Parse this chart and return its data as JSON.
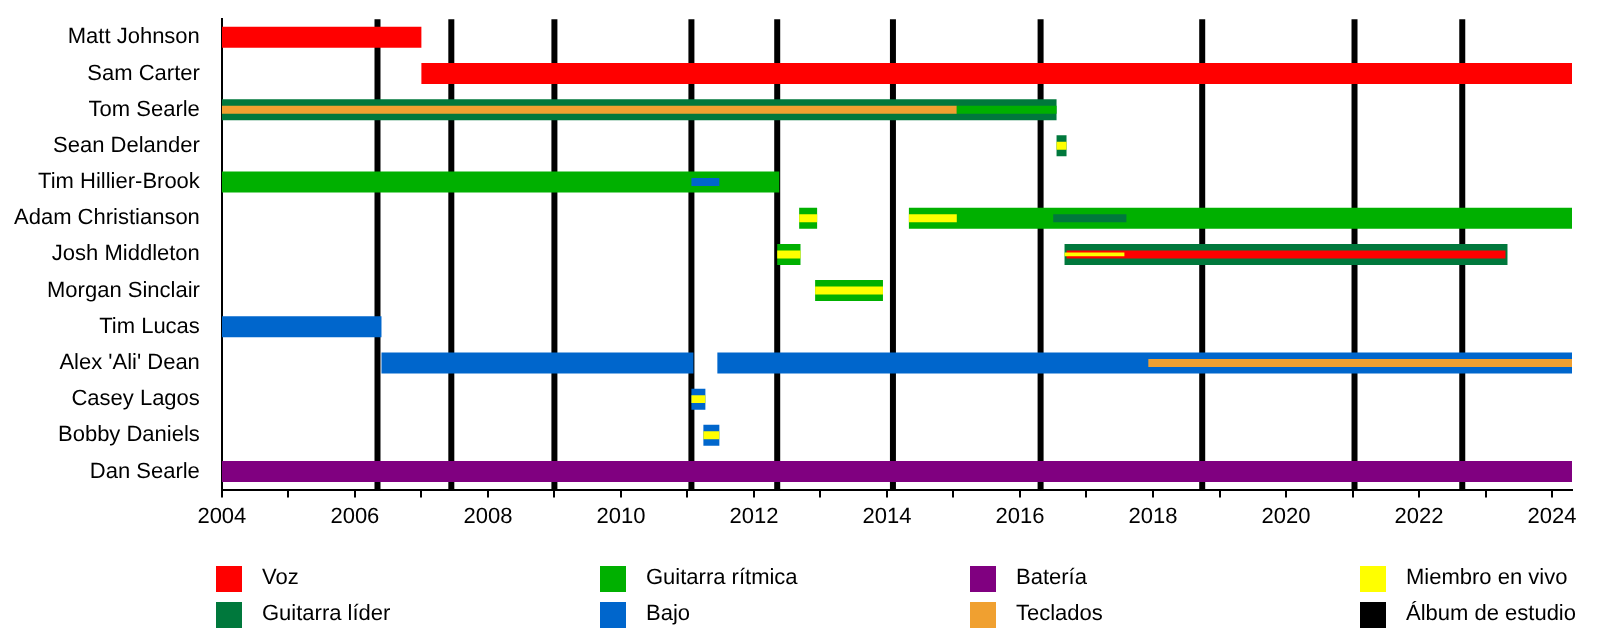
{
  "chart_data": {
    "type": "bar",
    "orientation": "horizontal",
    "legend": "bottom",
    "grid": false,
    "categories": [
      "Matt Johnson",
      "Sam Carter",
      "Tom Searle",
      "Sean Delander",
      "Tim Hillier-Brook",
      "Adam Christianson",
      "Josh Middleton",
      "Morgan Sinclair",
      "Tim Lucas",
      "Alex 'Ali' Dean",
      "Casey Lagos",
      "Bobby Daniels",
      "Dan Searle"
    ],
    "xlim": [
      2004,
      2024.3
    ],
    "xticks": [
      2004,
      {
        "value": 2005,
        "label": null
      },
      2006,
      {
        "value": 2007,
        "label": null
      },
      2008,
      {
        "value": 2009,
        "label": null
      },
      2010,
      {
        "value": 2011,
        "label": null
      },
      2012,
      {
        "value": 2013,
        "label": null
      },
      2014,
      {
        "value": 2015,
        "label": null
      },
      2016,
      {
        "value": 2017,
        "label": null
      },
      2018,
      {
        "value": 2019,
        "label": null
      },
      2020,
      {
        "value": 2021,
        "label": null
      },
      2022,
      {
        "value": 2023,
        "label": null
      },
      2024
    ],
    "series": [
      {
        "name": "Voz",
        "color": "#ff0000",
        "values": [
          3.0,
          17.3,
          null,
          null,
          null,
          null,
          6.6,
          null,
          null,
          null,
          null,
          null,
          null
        ],
        "base": [
          2004,
          2007.0,
          null,
          null,
          null,
          null,
          2016.7,
          null,
          null,
          null,
          null,
          null,
          null
        ]
      },
      {
        "name": "Guitarra líder",
        "color": "#00783c",
        "values": [
          null,
          null,
          12.55,
          0.15,
          null,
          1.1,
          6.66,
          null,
          null,
          null,
          null,
          null,
          null
        ],
        "base": [
          null,
          null,
          2004,
          2016.55,
          null,
          2016.5,
          2016.67,
          null,
          null,
          null,
          null,
          null,
          null
        ]
      },
      {
        "name": "Guitarra rítmica",
        "color": "#00b000",
        "values": [
          null,
          null,
          1.5,
          null,
          8.38,
          9.97,
          0.35,
          1.02,
          null,
          null,
          null,
          null,
          null
        ],
        "base": [
          null,
          null,
          2015.05,
          null,
          2004,
          2014.33,
          2012.35,
          2012.92,
          null,
          null,
          null,
          null,
          null
        ]
      },
      {
        "name": "Bajo",
        "color": "#0066cc",
        "values": [
          null,
          null,
          null,
          null,
          0.42,
          null,
          null,
          null,
          2.4,
          4.69,
          0.21,
          0.24,
          null
        ],
        "base": [
          null,
          null,
          null,
          null,
          2011.06,
          null,
          null,
          null,
          2004,
          2006.4,
          2011.06,
          2011.24,
          null
        ]
      },
      {
        "name": "Batería",
        "color": "#800080",
        "values": [
          null,
          null,
          null,
          null,
          null,
          null,
          null,
          null,
          null,
          null,
          null,
          null,
          20.3
        ],
        "base": [
          null,
          null,
          null,
          null,
          null,
          null,
          null,
          null,
          null,
          null,
          null,
          null,
          2004
        ]
      },
      {
        "name": "Teclados",
        "color": "#f0a030",
        "values": [
          null,
          null,
          11.05,
          null,
          null,
          null,
          null,
          null,
          null,
          6.37,
          null,
          null,
          null
        ],
        "base": [
          null,
          null,
          2004,
          null,
          null,
          null,
          null,
          null,
          null,
          2017.93,
          null,
          null,
          null
        ]
      },
      {
        "name": "Miembro en vivo",
        "color": "#ffff00",
        "values": [
          null,
          null,
          null,
          0.15,
          null,
          0.72,
          0.9,
          1.02,
          null,
          null,
          0.21,
          0.24,
          null
        ],
        "base": [
          null,
          null,
          null,
          2016.55,
          null,
          2014.33,
          2016.67,
          2012.92,
          null,
          null,
          2011.06,
          2011.24,
          null
        ]
      },
      {
        "color": "#00b000",
        "values": [
          null,
          null,
          null,
          null,
          null,
          0.27,
          null,
          null,
          null,
          null,
          null,
          null,
          null
        ],
        "base": [
          null,
          null,
          null,
          null,
          null,
          2012.68,
          null,
          null,
          null,
          null,
          null,
          null,
          null
        ]
      },
      {
        "color": "#0066cc",
        "values": [
          null,
          null,
          null,
          null,
          null,
          null,
          null,
          null,
          null,
          12.85,
          null,
          null,
          null
        ],
        "base": [
          null,
          null,
          null,
          null,
          null,
          null,
          null,
          null,
          null,
          2011.45,
          null,
          null,
          null
        ]
      },
      {
        "color": "#ffff00",
        "values": [
          null,
          null,
          null,
          null,
          null,
          0.27,
          0.35,
          null,
          null,
          null,
          null,
          null,
          null
        ],
        "base": [
          null,
          null,
          null,
          null,
          null,
          2012.68,
          2012.35,
          null,
          null,
          null,
          null,
          null,
          null
        ]
      }
    ],
    "ref_lines": [
      {
        "axis": "x",
        "value": 2006.34,
        "label": "Álbum de estudio",
        "color": "#000000"
      },
      {
        "axis": "x",
        "value": 2007.45,
        "color": "#000000"
      },
      {
        "axis": "x",
        "value": 2009.0,
        "color": "#000000"
      },
      {
        "axis": "x",
        "value": 2011.06,
        "color": "#000000"
      },
      {
        "axis": "x",
        "value": 2012.35,
        "color": "#000000"
      },
      {
        "axis": "x",
        "value": 2014.09,
        "color": "#000000"
      },
      {
        "axis": "x",
        "value": 2016.31,
        "color": "#000000"
      },
      {
        "axis": "x",
        "value": 2018.74,
        "color": "#000000"
      },
      {
        "axis": "x",
        "value": 2021.03,
        "color": "#000000"
      },
      {
        "axis": "x",
        "value": 2022.65,
        "color": "#000000"
      }
    ]
  }
}
